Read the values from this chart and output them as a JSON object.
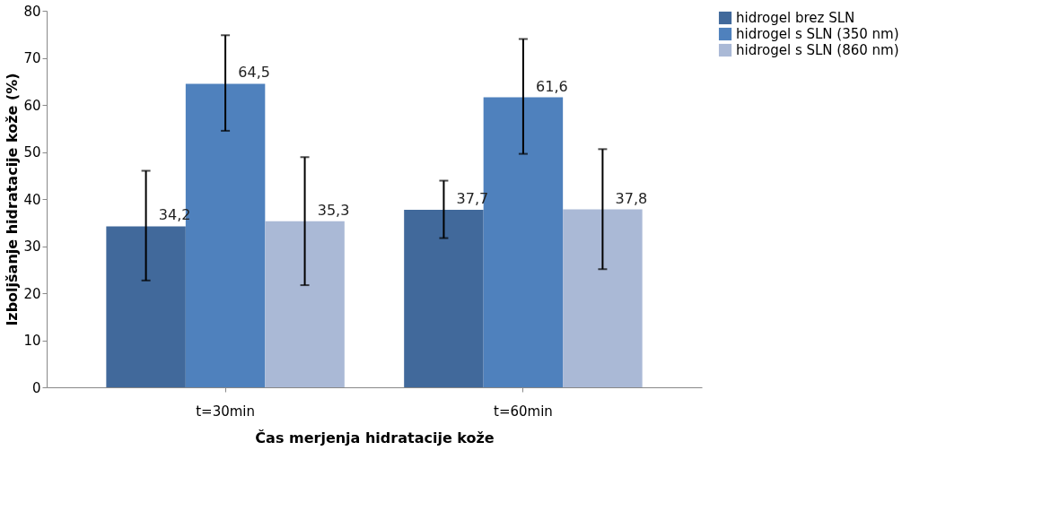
{
  "chart_data": {
    "type": "bar",
    "xlabel": "Čas merjenja hidratacije kože",
    "ylabel": "Izboljšanje hidratacije kože (%)",
    "categories": [
      "t=30min",
      "t=60min"
    ],
    "series": [
      {
        "name": "hidrogel brez SLN",
        "color": "#41699b",
        "values": [
          34.2,
          37.7
        ],
        "errors": [
          [
            22.7,
            46.0
          ],
          [
            31.7,
            43.9
          ]
        ],
        "value_labels": [
          "34,2",
          "37,7"
        ]
      },
      {
        "name": "hidrogel s SLN (350 nm)",
        "color": "#4f81bd",
        "values": [
          64.5,
          61.6
        ],
        "errors": [
          [
            54.5,
            74.8
          ],
          [
            49.6,
            74.0
          ]
        ],
        "value_labels": [
          "64,5",
          "61,6"
        ]
      },
      {
        "name": "hidrogel s SLN (860 nm)",
        "color": "#aab9d6",
        "values": [
          35.3,
          37.8
        ],
        "errors": [
          [
            21.7,
            48.9
          ],
          [
            25.1,
            50.6
          ]
        ],
        "value_labels": [
          "35,3",
          "37,8"
        ]
      }
    ],
    "ylim": [
      0,
      80
    ],
    "yticks": [
      0,
      10,
      20,
      30,
      40,
      50,
      60,
      70,
      80
    ],
    "grid": false,
    "legend": "right"
  }
}
